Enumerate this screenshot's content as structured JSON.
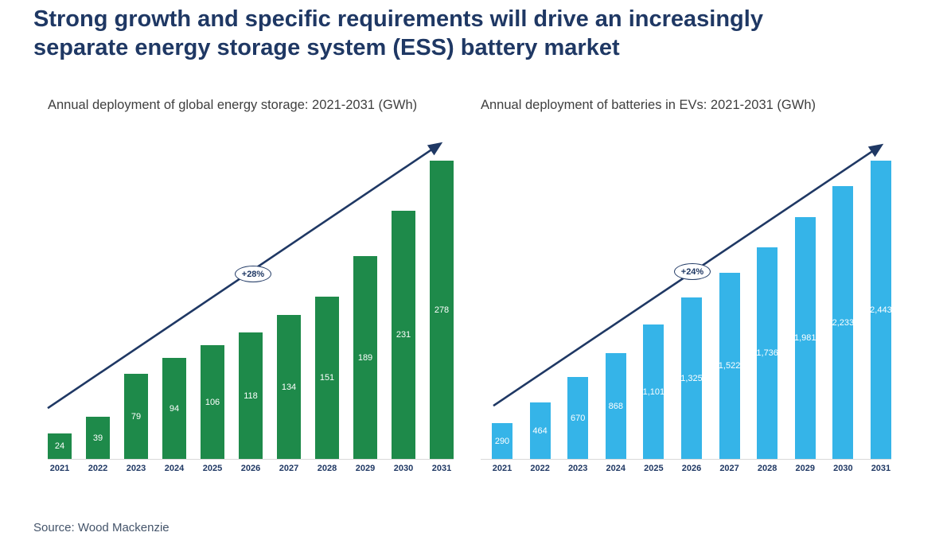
{
  "page": {
    "title_lines": [
      "Strong growth and specific requirements will drive an increasingly",
      "separate energy storage system (ESS) battery market"
    ],
    "title": "Strong growth and specific requirements will drive an increasingly separate energy storage system (ESS) battery market",
    "source": "Source: Wood Mackenzie"
  },
  "colors": {
    "navy": "#1F3864",
    "green_bar": "#1E8A4A",
    "blue_bar": "#35B4E8",
    "subtitle_text": "#3F3F3F",
    "source_text": "#44546A",
    "bar_value_text": "#FFFFFF"
  },
  "chart_data": [
    {
      "type": "bar",
      "title": "Annual deployment of global energy storage: 2021-2031 (GWh)",
      "categories": [
        "2021",
        "2022",
        "2023",
        "2024",
        "2025",
        "2026",
        "2027",
        "2028",
        "2029",
        "2030",
        "2031"
      ],
      "values": [
        24,
        39,
        79,
        94,
        106,
        118,
        134,
        151,
        189,
        231,
        278
      ],
      "value_labels": [
        "24",
        "39",
        "79",
        "94",
        "106",
        "118",
        "134",
        "151",
        "189",
        "231",
        "278"
      ],
      "growth_label": "+28%",
      "bar_color": "#1E8A4A",
      "xlabel": "",
      "ylabel": "GWh",
      "ylim": [
        0,
        280
      ],
      "grid": false,
      "legend": "none",
      "annotation": "CAGR arrow with +28% badge"
    },
    {
      "type": "bar",
      "title": "Annual deployment of batteries in EVs: 2021-2031 (GWh)",
      "categories": [
        "2021",
        "2022",
        "2023",
        "2024",
        "2025",
        "2026",
        "2027",
        "2028",
        "2029",
        "2030",
        "2031"
      ],
      "values": [
        290,
        464,
        670,
        868,
        1101,
        1325,
        1522,
        1736,
        1981,
        2233,
        2443
      ],
      "value_labels": [
        "290",
        "464",
        "670",
        "868",
        "1,101",
        "1,325",
        "1,522",
        "1,736",
        "1,981",
        "2,233",
        "2,443"
      ],
      "growth_label": "+24%",
      "bar_color": "#35B4E8",
      "xlabel": "",
      "ylabel": "GWh",
      "ylim": [
        0,
        2500
      ],
      "grid": false,
      "legend": "none",
      "annotation": "CAGR arrow with +24% badge"
    }
  ]
}
